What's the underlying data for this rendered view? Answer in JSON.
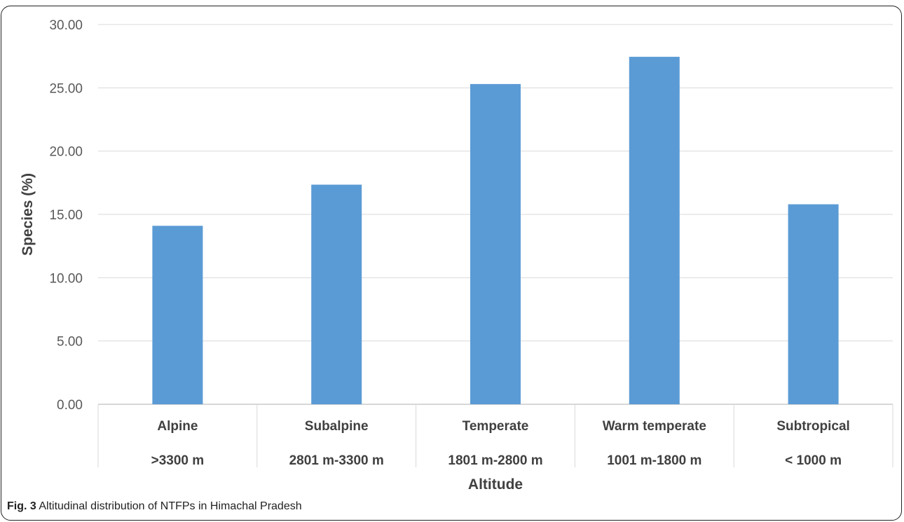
{
  "chart_data": {
    "type": "bar",
    "categories": [
      "Alpine",
      "Subalpine",
      "Temperate",
      "Warm temperate",
      "Subtropical"
    ],
    "category_ranges": [
      ">3300 m",
      "2801 m-3300 m",
      "1801 m-2800 m",
      "1001 m-1800 m",
      "< 1000 m"
    ],
    "values": [
      14.1,
      17.35,
      25.3,
      27.45,
      15.8
    ],
    "xlabel": "Altitude",
    "ylabel": "Species (%)",
    "ylim": [
      0,
      30
    ],
    "yticks": [
      "0.00",
      "5.00",
      "10.00",
      "15.00",
      "20.00",
      "25.00",
      "30.00"
    ],
    "grid": true,
    "bar_color": "#5b9bd5"
  },
  "caption": {
    "label": "Fig. 3",
    "text": "Altitudinal distribution of NTFPs in Himachal Pradesh"
  }
}
